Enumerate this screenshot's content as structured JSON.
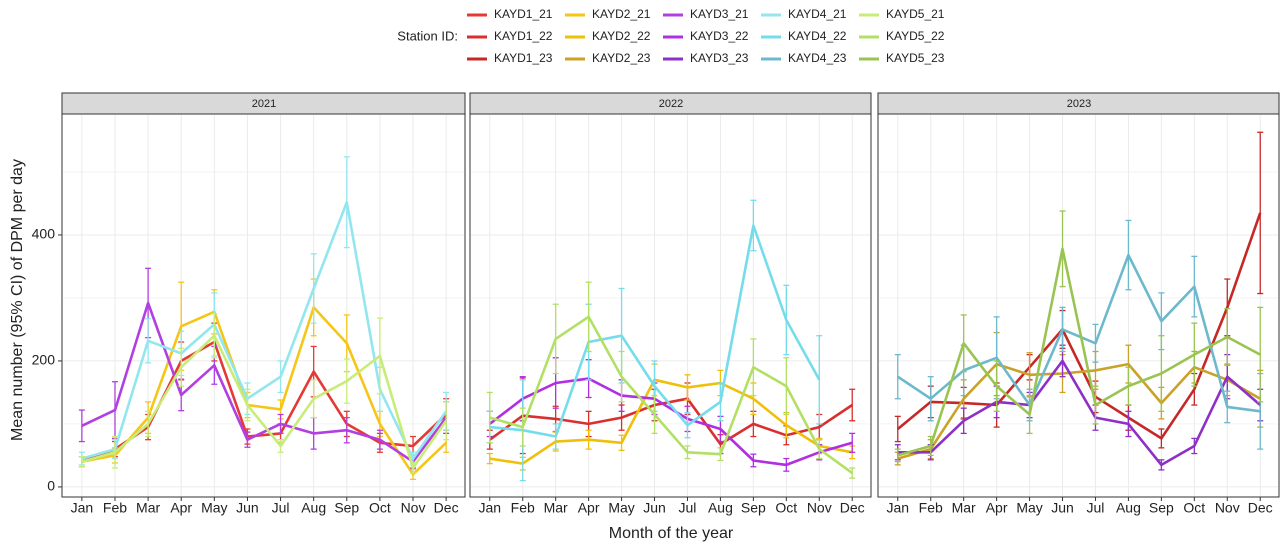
{
  "legend_title": "Station ID:",
  "xlabel": "Month of the year",
  "ylabel": "Mean number (95% CI) of DPM per day",
  "chart_data": [
    {
      "type": "line",
      "title": "2021",
      "categories": [
        "Jan",
        "Feb",
        "Mar",
        "Apr",
        "May",
        "Jun",
        "Jul",
        "Aug",
        "Sep",
        "Oct",
        "Nov",
        "Dec"
      ],
      "ylim": [
        -16,
        592
      ],
      "yticks": [
        0,
        200,
        400
      ],
      "grid": true,
      "series": [
        {
          "name": "KAYD1_21",
          "color": "#e53935",
          "values": [
            40,
            60,
            95,
            200,
            230,
            80,
            85,
            183,
            100,
            70,
            65,
            115
          ],
          "errors": [
            8,
            12,
            20,
            30,
            30,
            12,
            15,
            40,
            20,
            15,
            15,
            25
          ]
        },
        {
          "name": "KAYD2_21",
          "color": "#f5c518",
          "values": [
            40,
            50,
            110,
            255,
            278,
            130,
            123,
            285,
            228,
            100,
            20,
            70
          ],
          "errors": [
            8,
            12,
            25,
            70,
            35,
            20,
            15,
            45,
            45,
            20,
            8,
            15
          ]
        },
        {
          "name": "KAYD3_21",
          "color": "#b23fe0",
          "values": [
            97,
            122,
            292,
            146,
            193,
            75,
            100,
            85,
            90,
            75,
            40,
            110
          ],
          "errors": [
            25,
            45,
            55,
            25,
            30,
            12,
            15,
            25,
            20,
            15,
            10,
            25
          ]
        },
        {
          "name": "KAYD4_21",
          "color": "#92e6ef",
          "values": [
            45,
            60,
            232,
            212,
            258,
            140,
            175,
            315,
            452,
            155,
            45,
            120
          ],
          "errors": [
            10,
            15,
            35,
            35,
            50,
            25,
            25,
            55,
            72,
            35,
            10,
            30
          ]
        },
        {
          "name": "KAYD5_21",
          "color": "#c8ec78",
          "values": [
            40,
            55,
            100,
            190,
            240,
            130,
            65,
            140,
            168,
            208,
            30,
            105
          ],
          "errors": [
            8,
            25,
            20,
            30,
            35,
            25,
            10,
            30,
            35,
            60,
            8,
            30
          ]
        }
      ]
    },
    {
      "type": "line",
      "title": "2022",
      "categories": [
        "Jan",
        "Feb",
        "Mar",
        "Apr",
        "May",
        "Jun",
        "Jul",
        "Aug",
        "Sep",
        "Oct",
        "Nov",
        "Dec"
      ],
      "ylim": [
        -16,
        592
      ],
      "yticks": [
        0,
        200,
        400
      ],
      "grid": true,
      "series": [
        {
          "name": "KAYD1_22",
          "color": "#d92f2f",
          "values": [
            75,
            113,
            108,
            100,
            110,
            130,
            140,
            68,
            100,
            82,
            95,
            130
          ],
          "errors": [
            15,
            60,
            20,
            20,
            20,
            25,
            25,
            15,
            20,
            15,
            20,
            25
          ]
        },
        {
          "name": "KAYD2_22",
          "color": "#efbf0a",
          "values": [
            45,
            37,
            72,
            75,
            70,
            170,
            158,
            165,
            140,
            98,
            65,
            55
          ],
          "errors": [
            8,
            10,
            15,
            15,
            12,
            25,
            20,
            20,
            25,
            20,
            12,
            10
          ]
        },
        {
          "name": "KAYD3_22",
          "color": "#b02fe0",
          "values": [
            100,
            140,
            165,
            172,
            145,
            140,
            108,
            92,
            42,
            35,
            55,
            70
          ],
          "errors": [
            20,
            35,
            40,
            30,
            25,
            25,
            20,
            20,
            10,
            10,
            12,
            15
          ]
        },
        {
          "name": "KAYD4_22",
          "color": "#74dcea",
          "values": [
            95,
            90,
            80,
            230,
            240,
            160,
            98,
            135,
            415,
            265,
            170,
            null
          ],
          "errors": [
            25,
            80,
            20,
            60,
            75,
            40,
            20,
            30,
            40,
            55,
            70,
            null
          ]
        },
        {
          "name": "KAYD5_22",
          "color": "#b2e064",
          "values": [
            110,
            95,
            235,
            270,
            175,
            115,
            55,
            52,
            190,
            160,
            60,
            22
          ],
          "errors": [
            40,
            30,
            55,
            55,
            40,
            30,
            10,
            10,
            45,
            45,
            15,
            8
          ]
        }
      ]
    },
    {
      "type": "line",
      "title": "2023",
      "categories": [
        "Jan",
        "Feb",
        "Mar",
        "Apr",
        "May",
        "Jun",
        "Jul",
        "Aug",
        "Sep",
        "Oct",
        "Nov",
        "Dec"
      ],
      "ylim": [
        -16,
        592
      ],
      "yticks": [
        0,
        200,
        400
      ],
      "grid": true,
      "series": [
        {
          "name": "KAYD1_23",
          "color": "#c62828",
          "values": [
            92,
            135,
            133,
            130,
            190,
            250,
            143,
            110,
            77,
            155,
            285,
            435
          ],
          "errors": [
            20,
            25,
            25,
            35,
            20,
            30,
            25,
            20,
            15,
            25,
            45,
            128
          ]
        },
        {
          "name": "KAYD2_23",
          "color": "#c9a227",
          "values": [
            45,
            60,
            140,
            195,
            178,
            180,
            185,
            195,
            133,
            190,
            170,
            140
          ],
          "errors": [
            10,
            15,
            30,
            50,
            35,
            30,
            30,
            30,
            25,
            25,
            25,
            45
          ]
        },
        {
          "name": "KAYD3_23",
          "color": "#8e2fc6",
          "values": [
            55,
            55,
            105,
            135,
            130,
            200,
            110,
            100,
            35,
            65,
            175,
            130
          ],
          "errors": [
            12,
            12,
            20,
            25,
            20,
            25,
            20,
            20,
            8,
            12,
            35,
            25
          ]
        },
        {
          "name": "KAYD4_23",
          "color": "#6cb9cc",
          "values": [
            175,
            140,
            185,
            205,
            130,
            250,
            228,
            368,
            263,
            318,
            127,
            120
          ],
          "errors": [
            35,
            35,
            40,
            65,
            25,
            35,
            30,
            55,
            45,
            48,
            25,
            60
          ]
        },
        {
          "name": "KAYD5_23",
          "color": "#9ac452",
          "values": [
            50,
            65,
            228,
            160,
            115,
            378,
            130,
            160,
            180,
            210,
            238,
            210
          ],
          "errors": [
            10,
            15,
            45,
            40,
            30,
            60,
            30,
            30,
            60,
            50,
            45,
            75
          ]
        }
      ]
    }
  ]
}
